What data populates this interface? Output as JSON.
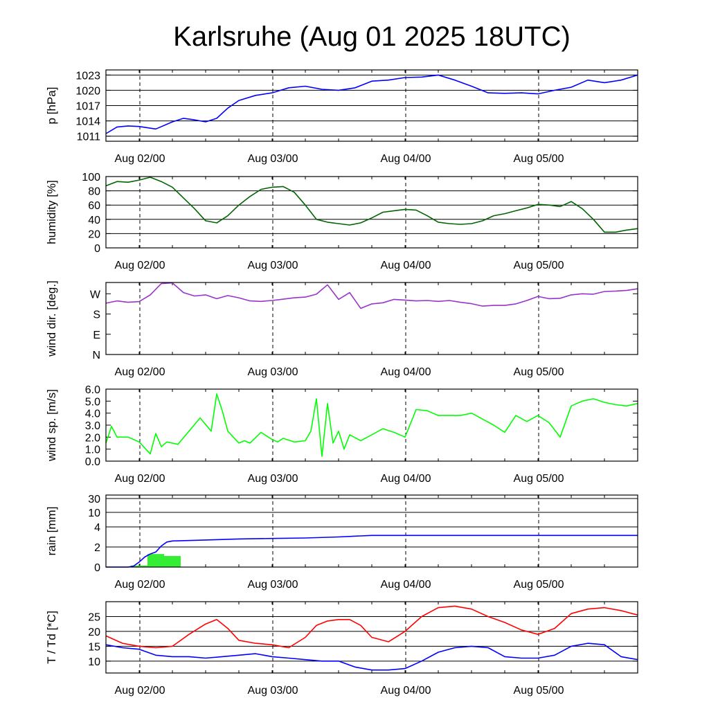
{
  "title": "Karlsruhe (Aug 01 2025 18UTC)",
  "chart_data": [
    {
      "type": "line",
      "ylabel": "p [hPa]",
      "x_ticks": [
        "Aug 02/00",
        "Aug 03/00",
        "Aug 04/00",
        "Aug 05/00"
      ],
      "ylim": [
        1010,
        1024
      ],
      "y_ticks": [
        1011,
        1014,
        1017,
        1020,
        1023
      ],
      "y_tick_labels": [
        "1011",
        "1014",
        "1017",
        "1020",
        "1023"
      ],
      "grid": true,
      "series": [
        {
          "color": "#0000ff",
          "x": [
            0,
            2,
            4,
            6,
            9,
            12,
            14,
            16,
            18,
            20,
            22,
            24,
            27,
            30,
            33,
            36,
            39,
            42,
            45,
            48,
            51,
            54,
            57,
            60,
            63,
            66,
            69,
            72,
            75,
            78,
            81,
            84,
            87,
            90,
            93,
            96
          ],
          "y": [
            1011.5,
            1012.8,
            1013.0,
            1012.9,
            1012.4,
            1013.8,
            1014.5,
            1014.2,
            1013.8,
            1014.5,
            1016.5,
            1018.0,
            1019.0,
            1019.5,
            1020.5,
            1020.8,
            1020.2,
            1020.0,
            1020.5,
            1021.8,
            1022.0,
            1022.5,
            1022.6,
            1023.0,
            1022.0,
            1020.8,
            1019.5,
            1019.4,
            1019.5,
            1019.3,
            1020.0,
            1020.6,
            1022.0,
            1021.5,
            1022.0,
            1023.0
          ]
        }
      ]
    },
    {
      "type": "line",
      "ylabel": "humidity [%]",
      "x_ticks": [
        "Aug 02/00",
        "Aug 03/00",
        "Aug 04/00",
        "Aug 05/00"
      ],
      "ylim": [
        0,
        100
      ],
      "y_ticks": [
        0,
        20,
        40,
        60,
        80,
        100
      ],
      "y_tick_labels": [
        "0",
        "20",
        "40",
        "60",
        "80",
        "100"
      ],
      "grid": true,
      "series": [
        {
          "color": "#006400",
          "x": [
            0,
            2,
            4,
            6,
            8,
            10,
            12,
            14,
            16,
            18,
            20,
            22,
            24,
            26,
            28,
            30,
            32,
            34,
            36,
            38,
            40,
            42,
            44,
            46,
            48,
            50,
            52,
            54,
            56,
            58,
            60,
            62,
            64,
            66,
            68,
            70,
            72,
            74,
            76,
            78,
            80,
            82,
            84,
            86,
            88,
            90,
            92,
            94,
            96
          ],
          "y": [
            87,
            93,
            92,
            95,
            99,
            93,
            85,
            70,
            55,
            38,
            35,
            45,
            60,
            72,
            82,
            85,
            86,
            78,
            60,
            40,
            36,
            34,
            32,
            35,
            42,
            50,
            52,
            54,
            53,
            45,
            36,
            34,
            33,
            34,
            38,
            45,
            48,
            52,
            56,
            61,
            60,
            58,
            65,
            55,
            40,
            22,
            22,
            25,
            27
          ]
        }
      ]
    },
    {
      "type": "line",
      "ylabel": "wind dir. [deg.]",
      "x_ticks": [
        "Aug 02/00",
        "Aug 03/00",
        "Aug 04/00",
        "Aug 05/00"
      ],
      "ylim": [
        0,
        320
      ],
      "y_ticks": [
        0,
        90,
        180,
        270
      ],
      "y_tick_labels": [
        "N",
        "E",
        "S",
        "W"
      ],
      "grid": false,
      "series": [
        {
          "color": "#9932cc",
          "x": [
            0,
            2,
            4,
            6,
            8,
            10,
            12,
            14,
            16,
            18,
            20,
            22,
            24,
            26,
            28,
            30,
            32,
            34,
            36,
            38,
            40,
            42,
            44,
            46,
            48,
            50,
            52,
            54,
            56,
            58,
            60,
            62,
            64,
            66,
            68,
            70,
            72,
            74,
            76,
            78,
            80,
            82,
            84,
            86,
            88,
            90,
            92,
            94,
            96
          ],
          "y": [
            228,
            238,
            232,
            235,
            265,
            315,
            318,
            275,
            260,
            265,
            248,
            262,
            252,
            238,
            236,
            240,
            246,
            252,
            255,
            268,
            310,
            245,
            275,
            205,
            225,
            230,
            245,
            242,
            238,
            240,
            236,
            240,
            232,
            226,
            215,
            218,
            218,
            225,
            240,
            258,
            248,
            250,
            265,
            270,
            268,
            280,
            282,
            285,
            292
          ]
        }
      ]
    },
    {
      "type": "line",
      "ylabel": "wind sp. [m/s]",
      "x_ticks": [
        "Aug 02/00",
        "Aug 03/00",
        "Aug 04/00",
        "Aug 05/00"
      ],
      "ylim": [
        0,
        6.0
      ],
      "y_ticks": [
        0,
        1,
        2,
        3,
        4,
        5,
        6
      ],
      "y_tick_labels": [
        "0.0",
        "1.0",
        "2.0",
        "3.0",
        "4.0",
        "5.0",
        "6.0"
      ],
      "grid": false,
      "series": [
        {
          "color": "#00ff00",
          "x": [
            0,
            1,
            2,
            4,
            6,
            8,
            9,
            10,
            11,
            12,
            13,
            15,
            17,
            19,
            20,
            21,
            22,
            23,
            24,
            25,
            26,
            28,
            30,
            31,
            32,
            34,
            36,
            37,
            38,
            39,
            40,
            41,
            42,
            43,
            44,
            46,
            48,
            50,
            52,
            54,
            56,
            58,
            60,
            62,
            64,
            66,
            68,
            70,
            72,
            74,
            76,
            78,
            80,
            82,
            84,
            86,
            88,
            90,
            92,
            94,
            96
          ],
          "y": [
            1.5,
            2.9,
            2.0,
            2.0,
            1.6,
            0.6,
            2.3,
            1.2,
            1.6,
            1.5,
            1.4,
            2.5,
            3.6,
            2.5,
            5.6,
            4.2,
            2.5,
            2.0,
            1.5,
            1.7,
            1.5,
            2.4,
            1.8,
            1.6,
            1.9,
            1.6,
            1.7,
            2.5,
            5.2,
            0.4,
            4.8,
            1.5,
            2.5,
            1.0,
            2.2,
            1.7,
            2.2,
            2.7,
            2.4,
            2.0,
            4.3,
            4.2,
            3.8,
            3.8,
            3.8,
            4.0,
            3.5,
            3.0,
            2.4,
            3.8,
            3.3,
            3.8,
            3.2,
            2.0,
            4.6,
            5.0,
            5.2,
            4.9,
            4.7,
            4.6,
            4.8
          ]
        }
      ]
    },
    {
      "type": "bar",
      "ylabel": "rain [mm]",
      "x_ticks": [
        "Aug 02/00",
        "Aug 03/00",
        "Aug 04/00",
        "Aug 05/00"
      ],
      "ylim": [
        0,
        35
      ],
      "y_ticks": [
        0,
        2,
        4,
        10,
        30
      ],
      "y_tick_labels": [
        "0",
        "2",
        "4",
        "10",
        "30"
      ],
      "grid": true,
      "bars": {
        "color": "#33ee33",
        "x_start": [
          4.5,
          7.5,
          10.5
        ],
        "width": 3,
        "values": [
          0.15,
          1.3,
          1.1
        ]
      },
      "series": [
        {
          "color": "#0000ff",
          "name": "",
          "x": [
            0,
            4,
            5,
            6,
            7,
            8,
            9,
            10,
            11,
            12,
            18,
            24,
            30,
            36,
            42,
            46,
            48,
            60,
            72,
            84,
            96
          ],
          "y": [
            0,
            0,
            0.1,
            0.5,
            1.0,
            1.3,
            1.5,
            2.1,
            2.5,
            2.6,
            2.7,
            2.8,
            2.85,
            2.9,
            3.0,
            3.1,
            3.15,
            3.15,
            3.15,
            3.15,
            3.15
          ]
        }
      ]
    },
    {
      "type": "line",
      "ylabel": "T / Td [*C]",
      "x_ticks": [
        "Aug 02/00",
        "Aug 03/00",
        "Aug 04/00",
        "Aug 05/00"
      ],
      "ylim": [
        6,
        30
      ],
      "y_ticks": [
        10,
        15,
        20,
        25
      ],
      "y_tick_labels": [
        "10",
        "15",
        "20",
        "25"
      ],
      "grid": true,
      "series": [
        {
          "color": "#ff0000",
          "x": [
            0,
            3,
            6,
            9,
            12,
            15,
            18,
            20,
            22,
            24,
            27,
            30,
            33,
            36,
            38,
            40,
            42,
            44,
            46,
            48,
            51,
            54,
            57,
            60,
            63,
            66,
            69,
            72,
            75,
            78,
            81,
            84,
            87,
            90,
            93,
            96
          ],
          "y": [
            18.5,
            16.0,
            15.0,
            14.5,
            15.0,
            19.0,
            22.5,
            24.0,
            21.0,
            17.0,
            16.0,
            15.5,
            14.5,
            18.0,
            22.0,
            23.5,
            24.0,
            24.0,
            22.0,
            18.0,
            16.5,
            20.0,
            25.0,
            28.0,
            28.5,
            27.5,
            25.0,
            23.0,
            20.5,
            19.0,
            21.0,
            26.0,
            27.5,
            28.0,
            27.0,
            25.5
          ]
        },
        {
          "color": "#0000ff",
          "x": [
            0,
            3,
            6,
            9,
            12,
            15,
            18,
            21,
            24,
            27,
            30,
            33,
            36,
            39,
            42,
            45,
            48,
            51,
            54,
            57,
            60,
            63,
            66,
            69,
            72,
            75,
            78,
            81,
            84,
            87,
            90,
            93,
            96
          ],
          "y": [
            15.5,
            14.5,
            14.0,
            12.0,
            11.5,
            11.5,
            11.0,
            11.5,
            12.0,
            12.5,
            11.5,
            11.0,
            10.5,
            10.0,
            10.0,
            8.0,
            7.0,
            7.0,
            7.5,
            10.0,
            13.0,
            14.5,
            15.0,
            14.5,
            11.5,
            11.0,
            11.0,
            12.0,
            15.0,
            16.0,
            15.5,
            11.5,
            10.5
          ]
        }
      ]
    }
  ]
}
